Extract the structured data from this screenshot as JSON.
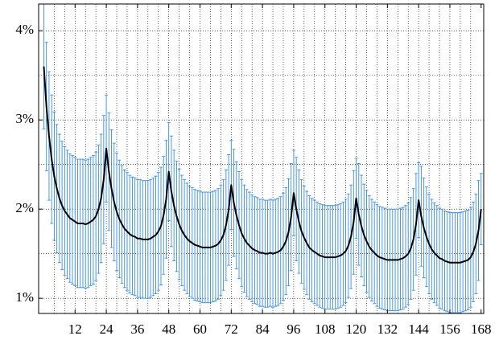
{
  "chart_data": {
    "type": "line",
    "x": [
      0,
      1,
      2,
      3,
      4,
      5,
      6,
      7,
      8,
      9,
      10,
      11,
      12,
      13,
      14,
      15,
      16,
      17,
      18,
      19,
      20,
      21,
      22,
      23,
      24,
      25,
      26,
      27,
      28,
      29,
      30,
      31,
      32,
      33,
      34,
      35,
      36,
      37,
      38,
      39,
      40,
      41,
      42,
      43,
      44,
      45,
      46,
      47,
      48,
      49,
      50,
      51,
      52,
      53,
      54,
      55,
      56,
      57,
      58,
      59,
      60,
      61,
      62,
      63,
      64,
      65,
      66,
      67,
      68,
      69,
      70,
      71,
      72,
      73,
      74,
      75,
      76,
      77,
      78,
      79,
      80,
      81,
      82,
      83,
      84,
      85,
      86,
      87,
      88,
      89,
      90,
      91,
      92,
      93,
      94,
      95,
      96,
      97,
      98,
      99,
      100,
      101,
      102,
      103,
      104,
      105,
      106,
      107,
      108,
      109,
      110,
      111,
      112,
      113,
      114,
      115,
      116,
      117,
      118,
      119,
      120,
      121,
      122,
      123,
      124,
      125,
      126,
      127,
      128,
      129,
      130,
      131,
      132,
      133,
      134,
      135,
      136,
      137,
      138,
      139,
      140,
      141,
      142,
      143,
      144,
      145,
      146,
      147,
      148,
      149,
      150,
      151,
      152,
      153,
      154,
      155,
      156,
      157,
      158,
      159,
      160,
      161,
      162,
      163,
      164,
      165,
      166,
      167,
      168
    ],
    "values": [
      3.6,
      3.15,
      2.82,
      2.56,
      2.37,
      2.23,
      2.12,
      2.04,
      1.98,
      1.94,
      1.9,
      1.88,
      1.86,
      1.84,
      1.84,
      1.84,
      1.83,
      1.84,
      1.86,
      1.88,
      1.92,
      2.0,
      2.12,
      2.33,
      2.68,
      2.42,
      2.23,
      2.08,
      1.97,
      1.89,
      1.83,
      1.78,
      1.75,
      1.72,
      1.7,
      1.69,
      1.67,
      1.67,
      1.66,
      1.66,
      1.66,
      1.67,
      1.69,
      1.71,
      1.75,
      1.81,
      1.93,
      2.11,
      2.42,
      2.2,
      2.04,
      1.92,
      1.83,
      1.76,
      1.71,
      1.67,
      1.64,
      1.62,
      1.6,
      1.59,
      1.58,
      1.57,
      1.57,
      1.57,
      1.57,
      1.58,
      1.59,
      1.61,
      1.65,
      1.71,
      1.82,
      1.99,
      2.27,
      2.07,
      1.93,
      1.82,
      1.73,
      1.67,
      1.62,
      1.59,
      1.56,
      1.54,
      1.53,
      1.51,
      1.51,
      1.5,
      1.5,
      1.51,
      1.5,
      1.51,
      1.52,
      1.54,
      1.58,
      1.64,
      1.74,
      1.91,
      2.18,
      2.0,
      1.86,
      1.75,
      1.68,
      1.62,
      1.57,
      1.54,
      1.52,
      1.5,
      1.48,
      1.47,
      1.46,
      1.46,
      1.46,
      1.46,
      1.46,
      1.47,
      1.48,
      1.5,
      1.53,
      1.59,
      1.69,
      1.85,
      2.12,
      1.94,
      1.81,
      1.71,
      1.64,
      1.58,
      1.54,
      1.51,
      1.48,
      1.46,
      1.45,
      1.44,
      1.43,
      1.43,
      1.43,
      1.43,
      1.43,
      1.44,
      1.45,
      1.47,
      1.5,
      1.56,
      1.66,
      1.83,
      2.1,
      1.92,
      1.79,
      1.69,
      1.61,
      1.55,
      1.51,
      1.48,
      1.45,
      1.44,
      1.42,
      1.41,
      1.4,
      1.4,
      1.4,
      1.4,
      1.4,
      1.41,
      1.42,
      1.43,
      1.46,
      1.52,
      1.61,
      1.76,
      2.0
    ],
    "errors": [
      0.7,
      0.72,
      0.72,
      0.72,
      0.72,
      0.72,
      0.72,
      0.72,
      0.72,
      0.72,
      0.72,
      0.72,
      0.72,
      0.72,
      0.72,
      0.72,
      0.72,
      0.72,
      0.72,
      0.72,
      0.72,
      0.72,
      0.72,
      0.72,
      0.6,
      0.66,
      0.66,
      0.66,
      0.66,
      0.66,
      0.66,
      0.66,
      0.66,
      0.66,
      0.66,
      0.66,
      0.66,
      0.66,
      0.66,
      0.66,
      0.66,
      0.66,
      0.66,
      0.66,
      0.66,
      0.66,
      0.66,
      0.66,
      0.55,
      0.62,
      0.62,
      0.62,
      0.62,
      0.62,
      0.62,
      0.62,
      0.62,
      0.62,
      0.62,
      0.62,
      0.62,
      0.62,
      0.62,
      0.62,
      0.62,
      0.62,
      0.62,
      0.62,
      0.62,
      0.62,
      0.62,
      0.62,
      0.5,
      0.6,
      0.6,
      0.6,
      0.6,
      0.6,
      0.6,
      0.6,
      0.6,
      0.6,
      0.6,
      0.6,
      0.6,
      0.6,
      0.6,
      0.6,
      0.6,
      0.6,
      0.6,
      0.6,
      0.6,
      0.6,
      0.6,
      0.6,
      0.48,
      0.58,
      0.58,
      0.58,
      0.58,
      0.58,
      0.58,
      0.58,
      0.58,
      0.58,
      0.58,
      0.58,
      0.58,
      0.58,
      0.58,
      0.58,
      0.58,
      0.58,
      0.58,
      0.58,
      0.58,
      0.58,
      0.58,
      0.58,
      0.45,
      0.57,
      0.57,
      0.57,
      0.57,
      0.57,
      0.57,
      0.57,
      0.57,
      0.57,
      0.57,
      0.57,
      0.57,
      0.57,
      0.57,
      0.57,
      0.57,
      0.57,
      0.57,
      0.57,
      0.57,
      0.57,
      0.57,
      0.57,
      0.42,
      0.56,
      0.56,
      0.56,
      0.56,
      0.56,
      0.56,
      0.56,
      0.56,
      0.56,
      0.56,
      0.56,
      0.56,
      0.56,
      0.56,
      0.56,
      0.56,
      0.56,
      0.56,
      0.56,
      0.56,
      0.56,
      0.56,
      0.56,
      0.4
    ],
    "color": "#000000",
    "error_color": "#3a8ee0",
    "xlim": [
      -2,
      169
    ],
    "ylim": [
      0.83,
      4.3
    ],
    "xticks": [
      12,
      24,
      36,
      48,
      60,
      72,
      84,
      96,
      108,
      120,
      132,
      144,
      156,
      168
    ],
    "x_minor_ticks": [
      4,
      8,
      12,
      16,
      20,
      24,
      28,
      32,
      36,
      40,
      44,
      48,
      52,
      56,
      60,
      64,
      68,
      72,
      76,
      80,
      84,
      88,
      92,
      96,
      100,
      104,
      108,
      112,
      116,
      120,
      124,
      128,
      132,
      136,
      140,
      144,
      148,
      152,
      156,
      160,
      164
    ],
    "yticks": [
      {
        "value": 1,
        "label": "1%"
      },
      {
        "value": 2,
        "label": "2%"
      },
      {
        "value": 3,
        "label": "3%"
      },
      {
        "value": 4,
        "label": "4%"
      }
    ],
    "y_minor_ticks": [
      1.5,
      2.5,
      3.5
    ],
    "grid": true
  }
}
